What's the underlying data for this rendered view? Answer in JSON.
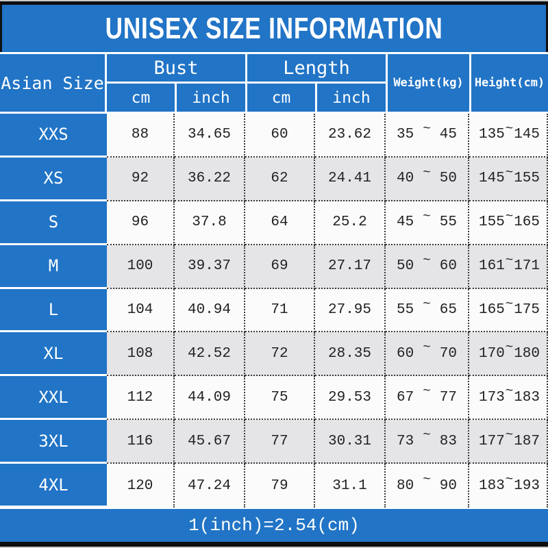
{
  "chart_data": {
    "type": "table",
    "title": "UNISEX SIZE INFORMATION",
    "footnote": "1(inch)=2.54(cm)",
    "headers": {
      "corner": "Asian Size",
      "bust_group": "Bust",
      "length_group": "Length",
      "unit_cm": "cm",
      "unit_inch": "inch",
      "weight": "Weight(kg)",
      "height": "Height(cm)",
      "tilde": "~"
    },
    "columns": [
      "Asian Size",
      "Bust cm",
      "Bust inch",
      "Length cm",
      "Length inch",
      "Weight(kg)",
      "Height(cm)"
    ],
    "rows": [
      {
        "size": "XXS",
        "bust_cm": "88",
        "bust_inch": "34.65",
        "len_cm": "60",
        "len_inch": "23.62",
        "weight_min": "35",
        "weight_max": "45",
        "height_min": "135",
        "height_max": "145"
      },
      {
        "size": "XS",
        "bust_cm": "92",
        "bust_inch": "36.22",
        "len_cm": "62",
        "len_inch": "24.41",
        "weight_min": "40",
        "weight_max": "50",
        "height_min": "145",
        "height_max": "155"
      },
      {
        "size": "S",
        "bust_cm": "96",
        "bust_inch": "37.8",
        "len_cm": "64",
        "len_inch": "25.2",
        "weight_min": "45",
        "weight_max": "55",
        "height_min": "155",
        "height_max": "165"
      },
      {
        "size": "M",
        "bust_cm": "100",
        "bust_inch": "39.37",
        "len_cm": "69",
        "len_inch": "27.17",
        "weight_min": "50",
        "weight_max": "60",
        "height_min": "161",
        "height_max": "171"
      },
      {
        "size": "L",
        "bust_cm": "104",
        "bust_inch": "40.94",
        "len_cm": "71",
        "len_inch": "27.95",
        "weight_min": "55",
        "weight_max": "65",
        "height_min": "165",
        "height_max": "175"
      },
      {
        "size": "XL",
        "bust_cm": "108",
        "bust_inch": "42.52",
        "len_cm": "72",
        "len_inch": "28.35",
        "weight_min": "60",
        "weight_max": "70",
        "height_min": "170",
        "height_max": "180"
      },
      {
        "size": "XXL",
        "bust_cm": "112",
        "bust_inch": "44.09",
        "len_cm": "75",
        "len_inch": "29.53",
        "weight_min": "67",
        "weight_max": "77",
        "height_min": "173",
        "height_max": "183"
      },
      {
        "size": "3XL",
        "bust_cm": "116",
        "bust_inch": "45.67",
        "len_cm": "77",
        "len_inch": "30.31",
        "weight_min": "73",
        "weight_max": "83",
        "height_min": "177",
        "height_max": "187"
      },
      {
        "size": "4XL",
        "bust_cm": "120",
        "bust_inch": "47.24",
        "len_cm": "79",
        "len_inch": "31.1",
        "weight_min": "80",
        "weight_max": "90",
        "height_min": "183",
        "height_max": "193"
      }
    ],
    "colors": {
      "accent_blue": "#2174c6",
      "row_alt_gray": "#e5e4e7",
      "row_plain": "#fbfbfb",
      "frame_black": "#0d0d0d"
    }
  }
}
